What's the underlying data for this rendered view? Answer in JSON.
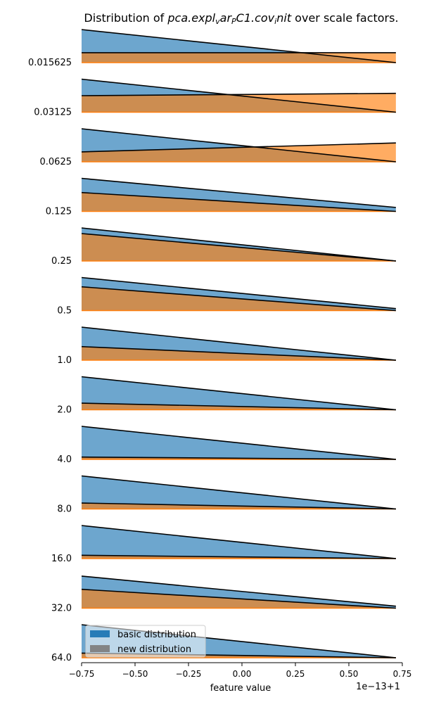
{
  "chart_data": {
    "type": "area",
    "title": "Distribution of $pca.expl_var_PC1.cov_init$ over scale factors.",
    "title_parts": {
      "lead": "Distribution of ",
      "math": "pca.expl",
      "sub1": "v",
      "math2": "ar",
      "sub2": "P",
      "math3": "C1.cov",
      "sub3": "i",
      "math4": "nit",
      "tail": " over scale factors."
    },
    "xlabel": "feature value",
    "x_offset_label": "1e−13+1",
    "x_ticks": [
      "−0.75",
      "−0.50",
      "−0.25",
      "0.00",
      "0.25",
      "0.50",
      "0.75"
    ],
    "x_tick_values": [
      -0.75,
      -0.5,
      -0.25,
      0.0,
      0.25,
      0.5,
      0.75
    ],
    "xlim": [
      -0.75,
      0.75
    ],
    "x_range": [
      -0.75,
      0.72
    ],
    "grid": false,
    "legend_position": "bottom-left",
    "colors": {
      "basic": "#1f77b4",
      "new": "#ff7f0e",
      "outline": "#000000"
    },
    "series": [
      {
        "name": "basic distribution"
      },
      {
        "name": "new distribution"
      }
    ],
    "ridges": [
      {
        "scale": "0.015625",
        "basic": [
          1.0,
          0.0
        ],
        "new": [
          0.3,
          0.3
        ]
      },
      {
        "scale": "0.03125",
        "basic": [
          1.0,
          0.0
        ],
        "new": [
          0.5,
          0.57
        ]
      },
      {
        "scale": "0.0625",
        "basic": [
          1.0,
          0.0
        ],
        "new": [
          0.3,
          0.57
        ]
      },
      {
        "scale": "0.125",
        "basic": [
          1.0,
          0.12
        ],
        "new": [
          0.57,
          0.0
        ]
      },
      {
        "scale": "0.25",
        "basic": [
          1.0,
          0.0
        ],
        "new": [
          0.83,
          0.0
        ]
      },
      {
        "scale": "0.5",
        "basic": [
          1.0,
          0.06
        ],
        "new": [
          0.72,
          0.0
        ]
      },
      {
        "scale": "1.0",
        "basic": [
          1.0,
          0.0
        ],
        "new": [
          0.41,
          0.0
        ]
      },
      {
        "scale": "2.0",
        "basic": [
          1.0,
          0.0
        ],
        "new": [
          0.2,
          0.0
        ]
      },
      {
        "scale": "4.0",
        "basic": [
          1.0,
          0.0
        ],
        "new": [
          0.07,
          0.0
        ]
      },
      {
        "scale": "8.0",
        "basic": [
          1.0,
          0.0
        ],
        "new": [
          0.18,
          0.0
        ]
      },
      {
        "scale": "16.0",
        "basic": [
          1.0,
          0.0
        ],
        "new": [
          0.1,
          0.0
        ]
      },
      {
        "scale": "32.0",
        "basic": [
          0.97,
          0.06
        ],
        "new": [
          0.57,
          0.0
        ]
      },
      {
        "scale": "64.0",
        "basic": [
          1.0,
          0.0
        ],
        "new": [
          0.14,
          0.0
        ]
      }
    ]
  }
}
